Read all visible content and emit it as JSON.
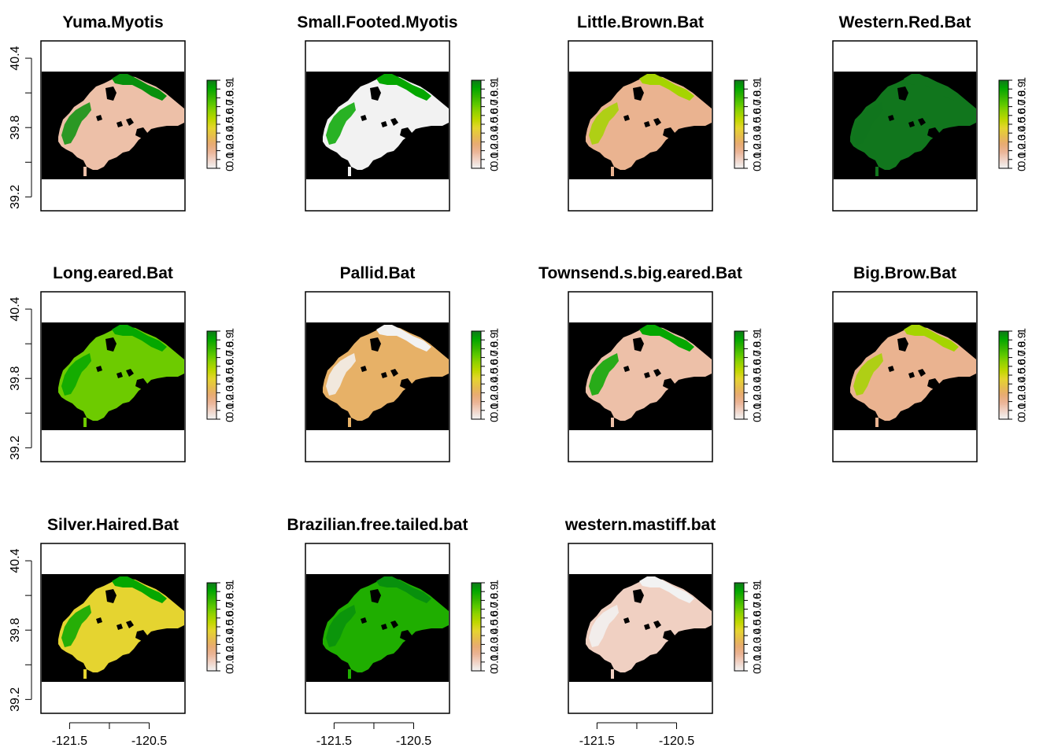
{
  "chart_data": {
    "type": "heatmap",
    "layout": {
      "rows": 3,
      "cols": 4
    },
    "x_axis": {
      "lim": [
        -121.86,
        -120.05
      ],
      "ticks": [
        -121.5,
        -121.0,
        -120.5
      ],
      "tick_labels": [
        "-121.5",
        "",
        "-120.5"
      ]
    },
    "y_axis": {
      "lim": [
        39.08,
        40.55
      ],
      "ticks": [
        39.2,
        39.5,
        39.8,
        40.1,
        40.4
      ],
      "tick_labels": [
        "39.2",
        "",
        "39.8",
        "",
        "40.4"
      ]
    },
    "value_range": [
      0,
      1
    ],
    "legend": {
      "ticks": [
        0,
        0.1,
        0.2,
        0.3,
        0.4,
        0.5,
        0.6,
        0.7,
        0.8,
        0.9,
        1
      ],
      "tick_labels": [
        "0",
        "0.1",
        "0.2",
        "0.3",
        "0.4",
        "0.5",
        "0.6",
        "0.7",
        "0.8",
        "0.9",
        "1"
      ],
      "palette": [
        "#f2f2f2",
        "#f0d3c7",
        "#ebb597",
        "#e8ab72",
        "#e6be4c",
        "#e5d52f",
        "#c0d700",
        "#93d200",
        "#5cc800",
        "#2fb200",
        "#00a600",
        "#11761d"
      ]
    },
    "background_color": "#000000",
    "panels": [
      {
        "title": "Yuma.Myotis",
        "value": 0.15,
        "secondary_value": 0.95
      },
      {
        "title": "Small.Footed.Myotis",
        "value": 0.0,
        "secondary_value": 0.9
      },
      {
        "title": "Little.Brown.Bat",
        "value": 0.2,
        "secondary_value": 0.6
      },
      {
        "title": "Western.Red.Bat",
        "value": 1.0,
        "secondary_value": 1.0
      },
      {
        "title": "Long.eared.Bat",
        "value": 0.7,
        "secondary_value": 0.9
      },
      {
        "title": "Pallid.Bat",
        "value": 0.3,
        "secondary_value": 0.0
      },
      {
        "title": "Townsend.s.big.eared.Bat",
        "value": 0.15,
        "secondary_value": 0.9
      },
      {
        "title": "Big.Brow.Bat",
        "value": 0.2,
        "secondary_value": 0.6
      },
      {
        "title": "Silver.Haired.Bat",
        "value": 0.45,
        "secondary_value": 0.9
      },
      {
        "title": "Brazilian.free.tailed.bat",
        "value": 0.85,
        "secondary_value": 0.95
      },
      {
        "title": "western.mastiff.bat",
        "value": 0.1,
        "secondary_value": 0.0
      }
    ]
  }
}
